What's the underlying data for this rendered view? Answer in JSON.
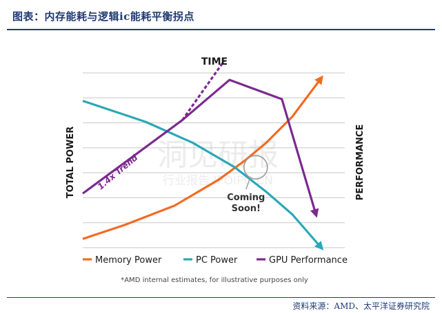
{
  "header": {
    "title": "图表：内存能耗与逻辑ic能耗平衡拐点"
  },
  "footer": {
    "source": "资料来源：AMD、太平洋证券研究院"
  },
  "watermark": {
    "brand": "洞见研报",
    "url": "行业报告 IPOIPO.CN"
  },
  "chart_data": {
    "type": "line",
    "title": "TIME",
    "xlabel": "",
    "ylabel": "TOTAL POWER",
    "y2label": "PERFORMANCE",
    "ticks": false,
    "grid": true,
    "gridlines": 8,
    "x_domain": [
      0,
      100
    ],
    "y_domain": [
      0,
      100
    ],
    "series": [
      {
        "name": "Memory Power",
        "color": "#f26b22",
        "arrow": true,
        "points": [
          [
            0,
            5
          ],
          [
            16,
            13
          ],
          [
            35,
            24
          ],
          [
            52,
            39
          ],
          [
            62,
            50
          ],
          [
            70,
            60
          ],
          [
            80,
            75
          ],
          [
            91,
            97
          ]
        ]
      },
      {
        "name": "PC Power",
        "color": "#2aa8b6",
        "arrow": true,
        "points": [
          [
            0,
            84
          ],
          [
            24,
            72
          ],
          [
            42,
            60
          ],
          [
            58,
            46
          ],
          [
            70,
            32
          ],
          [
            80,
            19
          ],
          [
            91,
            0
          ]
        ]
      },
      {
        "name": "GPU Performance",
        "color": "#7b2a8e",
        "arrow": true,
        "points": [
          [
            0,
            31
          ],
          [
            38,
            73
          ],
          [
            56,
            96
          ],
          [
            76,
            85
          ],
          [
            89,
            19
          ]
        ]
      }
    ],
    "trend": {
      "label": "1.4x Trend",
      "color": "#7b2a8e",
      "dashed": true,
      "points": [
        [
          38,
          73
        ],
        [
          54,
          107
        ]
      ]
    },
    "annotation": {
      "label_line1": "Coming",
      "label_line2": "Soon!",
      "circle_at": [
        66,
        46
      ]
    },
    "footnote": "*AMD internal estimates, for illustrative purposes only"
  }
}
